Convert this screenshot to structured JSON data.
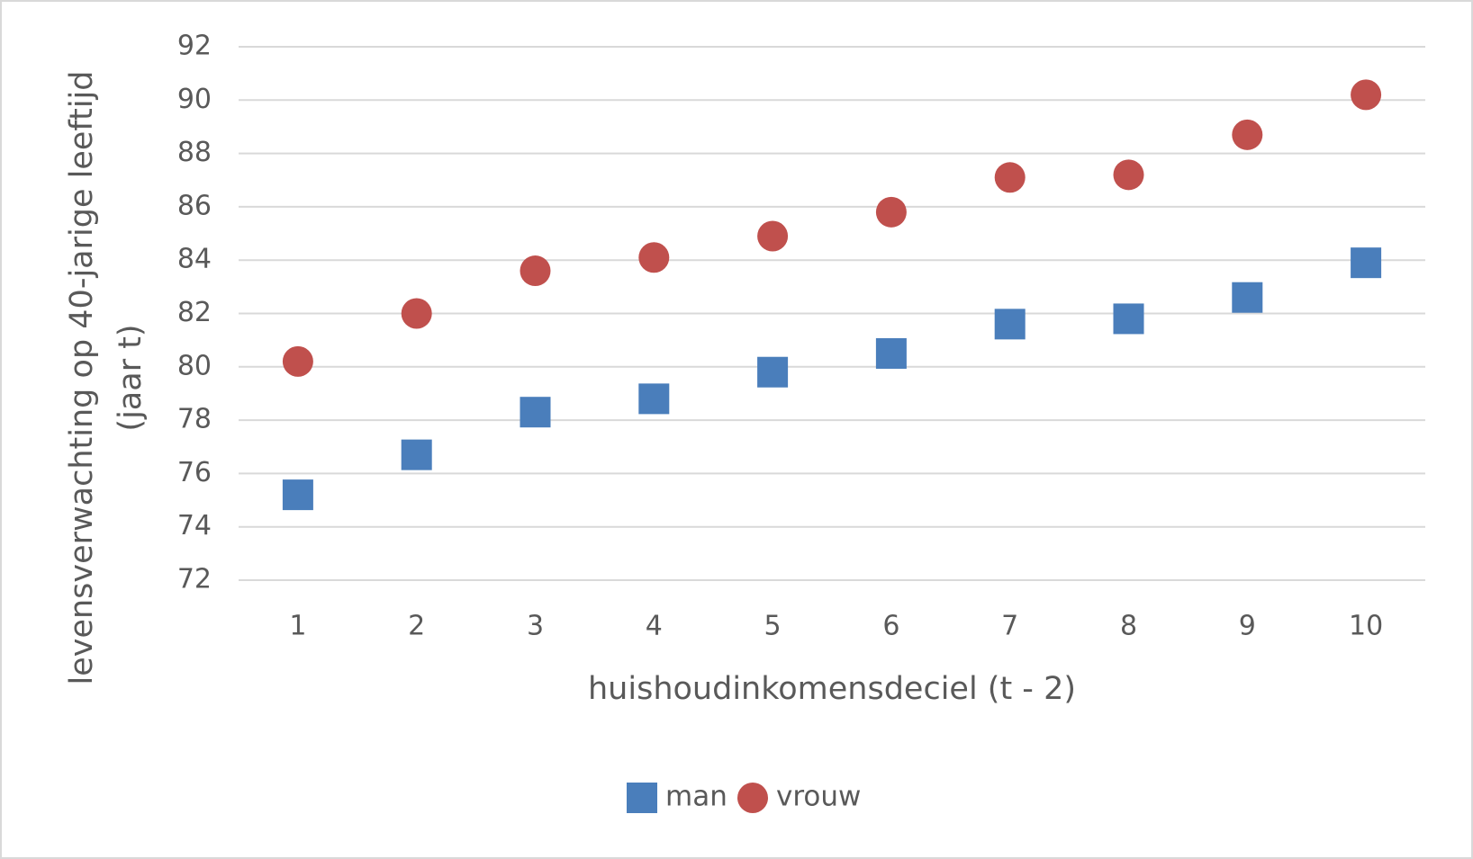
{
  "chart_data": {
    "type": "scatter",
    "xlabel": "huishoudinkomensdeciel (t - 2)",
    "ylabel": [
      "levensverwachting op 40-jarige leeftijd",
      "(jaar t)"
    ],
    "x": [
      1,
      2,
      3,
      4,
      5,
      6,
      7,
      8,
      9,
      10
    ],
    "series": [
      {
        "name": "man",
        "color": "#4a7ebb",
        "marker": "square",
        "values": [
          75.2,
          76.7,
          78.3,
          78.8,
          79.8,
          80.5,
          81.6,
          81.8,
          82.6,
          83.9
        ]
      },
      {
        "name": "vrouw",
        "color": "#c0504d",
        "marker": "circle",
        "values": [
          80.2,
          82.0,
          83.6,
          84.1,
          84.9,
          85.8,
          87.1,
          87.2,
          88.7,
          90.2
        ]
      }
    ],
    "xlim": [
      0.5,
      10.5
    ],
    "xticks": [
      1,
      2,
      3,
      4,
      5,
      6,
      7,
      8,
      9,
      10
    ],
    "ylim": [
      72,
      92
    ],
    "yticks": [
      72,
      74,
      76,
      78,
      80,
      82,
      84,
      86,
      88,
      90,
      92
    ],
    "grid": true,
    "legend": "bottom"
  }
}
